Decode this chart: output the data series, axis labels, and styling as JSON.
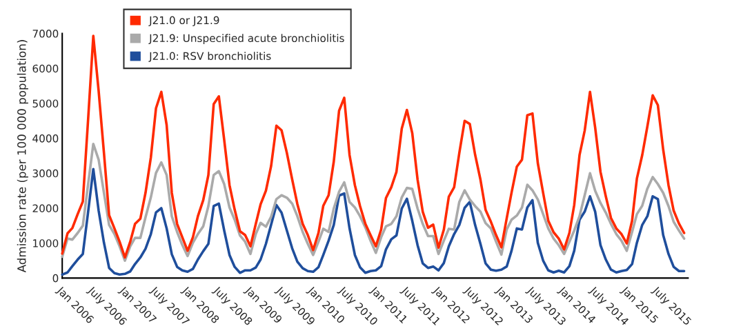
{
  "chart_data": {
    "type": "line",
    "ylabel": "Admission rate (per 100 000 population)",
    "x": [
      "2006-01",
      "2006-02",
      "2006-03",
      "2006-04",
      "2006-05",
      "2006-06",
      "2006-07",
      "2006-08",
      "2006-09",
      "2006-10",
      "2006-11",
      "2006-12",
      "2007-01",
      "2007-02",
      "2007-03",
      "2007-04",
      "2007-05",
      "2007-06",
      "2007-07",
      "2007-08",
      "2007-09",
      "2007-10",
      "2007-11",
      "2007-12",
      "2008-01",
      "2008-02",
      "2008-03",
      "2008-04",
      "2008-05",
      "2008-06",
      "2008-07",
      "2008-08",
      "2008-09",
      "2008-10",
      "2008-11",
      "2008-12",
      "2009-01",
      "2009-02",
      "2009-03",
      "2009-04",
      "2009-05",
      "2009-06",
      "2009-07",
      "2009-08",
      "2009-09",
      "2009-10",
      "2009-11",
      "2009-12",
      "2010-01",
      "2010-02",
      "2010-03",
      "2010-04",
      "2010-05",
      "2010-06",
      "2010-07",
      "2010-08",
      "2010-09",
      "2010-10",
      "2010-11",
      "2010-12",
      "2011-01",
      "2011-02",
      "2011-03",
      "2011-04",
      "2011-05",
      "2011-06",
      "2011-07",
      "2011-08",
      "2011-09",
      "2011-10",
      "2011-11",
      "2011-12",
      "2012-01",
      "2012-02",
      "2012-03",
      "2012-04",
      "2012-05",
      "2012-06",
      "2012-07",
      "2012-08",
      "2012-09",
      "2012-10",
      "2012-11",
      "2012-12",
      "2013-01",
      "2013-02",
      "2013-03",
      "2013-04",
      "2013-05",
      "2013-06",
      "2013-07",
      "2013-08",
      "2013-09",
      "2013-10",
      "2013-11",
      "2013-12",
      "2014-01",
      "2014-02",
      "2014-03",
      "2014-04",
      "2014-05",
      "2014-06",
      "2014-07",
      "2014-08",
      "2014-09",
      "2014-10",
      "2014-11",
      "2014-12",
      "2015-01",
      "2015-02",
      "2015-03",
      "2015-04",
      "2015-05",
      "2015-06",
      "2015-07",
      "2015-08",
      "2015-09",
      "2015-10",
      "2015-11",
      "2015-12"
    ],
    "series": [
      {
        "name": "J21.0 or J21.9",
        "color": "#ff2a00",
        "values": [
          700,
          1280,
          1430,
          1830,
          2190,
          4560,
          6930,
          5360,
          3580,
          1800,
          1420,
          1040,
          590,
          1040,
          1550,
          1700,
          2440,
          3450,
          4860,
          5330,
          4380,
          2440,
          1550,
          1170,
          780,
          1170,
          1770,
          2230,
          2950,
          4980,
          5200,
          3960,
          2660,
          1960,
          1340,
          1230,
          910,
          1550,
          2110,
          2500,
          3200,
          4360,
          4230,
          3580,
          2820,
          2120,
          1550,
          1230,
          800,
          1290,
          2070,
          2370,
          3330,
          4790,
          5160,
          3520,
          2660,
          2060,
          1550,
          1230,
          910,
          1390,
          2290,
          2600,
          3040,
          4280,
          4810,
          4150,
          2820,
          1900,
          1440,
          1530,
          870,
          1390,
          2330,
          2600,
          3580,
          4500,
          4410,
          3530,
          2820,
          1950,
          1610,
          1230,
          880,
          1710,
          2440,
          3190,
          3390,
          4660,
          4710,
          3290,
          2440,
          1640,
          1310,
          1130,
          820,
          1290,
          2090,
          3520,
          4220,
          5330,
          4310,
          3040,
          2340,
          1720,
          1420,
          1260,
          990,
          1640,
          2850,
          3520,
          4340,
          5230,
          4950,
          3680,
          2660,
          1930,
          1560,
          1290
        ]
      },
      {
        "name": "J21.9: Unspecified acute bronchiolitis",
        "color": "#aaaaaa",
        "values": [
          610,
          1130,
          1100,
          1290,
          1500,
          2690,
          3840,
          3390,
          2440,
          1520,
          1260,
          910,
          500,
          910,
          1150,
          1150,
          1740,
          2310,
          3010,
          3310,
          2950,
          1770,
          1320,
          950,
          630,
          1010,
          1260,
          1480,
          2060,
          2950,
          3060,
          2690,
          2020,
          1670,
          1220,
          1040,
          690,
          1260,
          1580,
          1470,
          1750,
          2260,
          2370,
          2300,
          2130,
          1770,
          1320,
          980,
          660,
          1040,
          1410,
          1320,
          1990,
          2470,
          2740,
          2180,
          2020,
          1770,
          1450,
          1070,
          720,
          1170,
          1480,
          1550,
          1770,
          2310,
          2580,
          2550,
          1990,
          1550,
          1200,
          1200,
          690,
          1070,
          1410,
          1390,
          2180,
          2510,
          2250,
          2060,
          1900,
          1570,
          1420,
          1040,
          670,
          1390,
          1670,
          1790,
          2020,
          2670,
          2510,
          2250,
          1830,
          1420,
          1130,
          940,
          690,
          1040,
          1360,
          1770,
          2370,
          3000,
          2500,
          2150,
          1870,
          1550,
          1260,
          1070,
          780,
          1320,
          1830,
          2070,
          2560,
          2890,
          2690,
          2440,
          2060,
          1610,
          1360,
          1130
        ]
      },
      {
        "name": "J21.0: RSV bronchiolitis",
        "color": "#1f4e9c",
        "values": [
          100,
          160,
          340,
          530,
          690,
          1900,
          3120,
          1930,
          1010,
          290,
          140,
          100,
          120,
          190,
          400,
          590,
          840,
          1260,
          1880,
          2000,
          1420,
          680,
          320,
          220,
          180,
          260,
          530,
          770,
          980,
          2060,
          2130,
          1360,
          660,
          320,
          150,
          220,
          220,
          300,
          530,
          980,
          1520,
          2090,
          1870,
          1360,
          850,
          470,
          280,
          200,
          180,
          310,
          660,
          1070,
          1520,
          2360,
          2420,
          1420,
          660,
          310,
          150,
          200,
          220,
          340,
          820,
          1110,
          1220,
          1990,
          2270,
          1640,
          940,
          420,
          290,
          330,
          220,
          430,
          910,
          1260,
          1520,
          2010,
          2180,
          1520,
          980,
          420,
          240,
          210,
          240,
          330,
          780,
          1420,
          1390,
          2020,
          2230,
          1010,
          500,
          220,
          160,
          210,
          160,
          340,
          780,
          1670,
          1900,
          2340,
          1900,
          940,
          530,
          240,
          160,
          200,
          230,
          400,
          1010,
          1520,
          1770,
          2340,
          2260,
          1230,
          690,
          320,
          200,
          200
        ]
      }
    ],
    "xlim": [
      "2006-01-01",
      "2015-12-24"
    ],
    "xticks": [
      {
        "value": "2006-01",
        "label": "Jan 2006"
      },
      {
        "value": "2006-07",
        "label": "July 2006"
      },
      {
        "value": "2007-01",
        "label": "Jan 2007"
      },
      {
        "value": "2007-07",
        "label": "July 2007"
      },
      {
        "value": "2008-01",
        "label": "Jan 2008"
      },
      {
        "value": "2008-07",
        "label": "July 2008"
      },
      {
        "value": "2009-01",
        "label": "Jan 2009"
      },
      {
        "value": "2009-07",
        "label": "July 2009"
      },
      {
        "value": "2010-01",
        "label": "Jan 2010"
      },
      {
        "value": "2010-07",
        "label": "July 2010"
      },
      {
        "value": "2011-01",
        "label": "Jan 2011"
      },
      {
        "value": "2011-07",
        "label": "July 2011"
      },
      {
        "value": "2012-01",
        "label": "Jan 2012"
      },
      {
        "value": "2012-07",
        "label": "July 2012"
      },
      {
        "value": "2013-01",
        "label": "Jan 2013"
      },
      {
        "value": "2013-07",
        "label": "July 2013"
      },
      {
        "value": "2014-01",
        "label": "Jan 2014"
      },
      {
        "value": "2014-07",
        "label": "July 2014"
      },
      {
        "value": "2015-01",
        "label": "Jan 2015"
      },
      {
        "value": "2015-07",
        "label": "July 2015"
      }
    ],
    "ylim": [
      0,
      7000
    ],
    "yticks": [
      0,
      1000,
      2000,
      3000,
      4000,
      5000,
      6000,
      7000
    ],
    "grid": false,
    "legend": "top left"
  }
}
